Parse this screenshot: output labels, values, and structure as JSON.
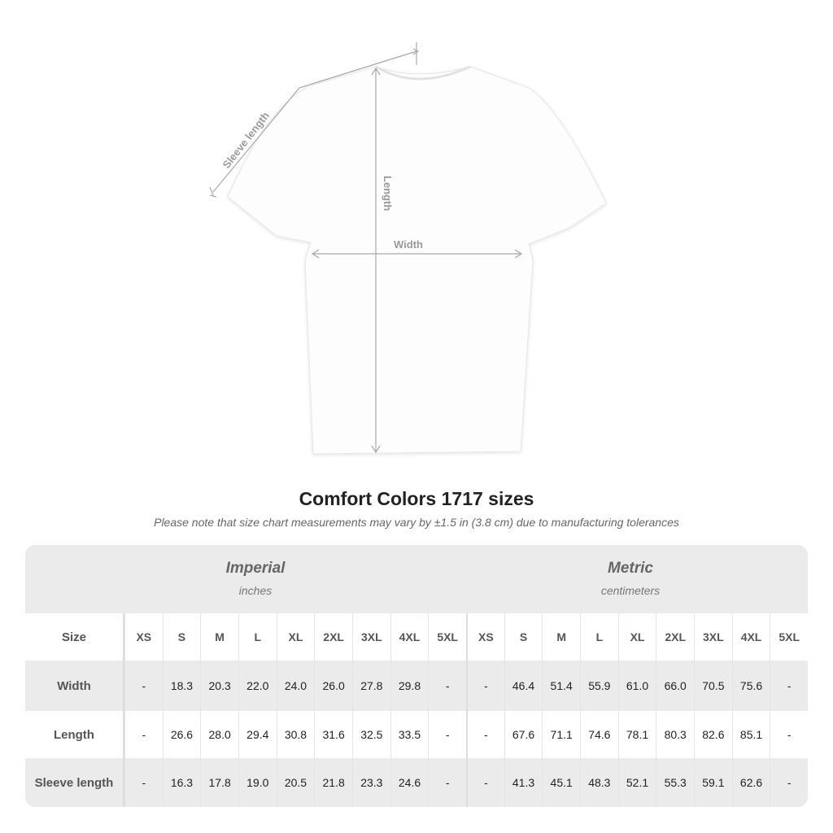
{
  "diagram": {
    "sleeve_label": "Sleeve length",
    "length_label": "Length",
    "width_label": "Width"
  },
  "title": "Comfort Colors 1717 sizes",
  "note": "Please note that size chart measurements may vary by ±1.5 in (3.8 cm) due to manufacturing tolerances",
  "imperial": {
    "name": "Imperial",
    "unit": "inches"
  },
  "metric": {
    "name": "Metric",
    "unit": "centimeters"
  },
  "size_label": "Size",
  "sizes": [
    "XS",
    "S",
    "M",
    "L",
    "XL",
    "2XL",
    "3XL",
    "4XL",
    "5XL"
  ],
  "rows": [
    {
      "label": "Width",
      "imperial": [
        "-",
        "18.3",
        "20.3",
        "22.0",
        "24.0",
        "26.0",
        "27.8",
        "29.8",
        "-"
      ],
      "metric": [
        "-",
        "46.4",
        "51.4",
        "55.9",
        "61.0",
        "66.0",
        "70.5",
        "75.6",
        "-"
      ]
    },
    {
      "label": "Length",
      "imperial": [
        "-",
        "26.6",
        "28.0",
        "29.4",
        "30.8",
        "31.6",
        "32.5",
        "33.5",
        "-"
      ],
      "metric": [
        "-",
        "67.6",
        "71.1",
        "74.6",
        "78.1",
        "80.3",
        "82.6",
        "85.1",
        "-"
      ]
    },
    {
      "label": "Sleeve length",
      "imperial": [
        "-",
        "16.3",
        "17.8",
        "19.0",
        "20.5",
        "21.8",
        "23.3",
        "24.6",
        "-"
      ],
      "metric": [
        "-",
        "41.3",
        "45.1",
        "48.3",
        "52.1",
        "55.3",
        "59.1",
        "62.6",
        "-"
      ]
    }
  ]
}
